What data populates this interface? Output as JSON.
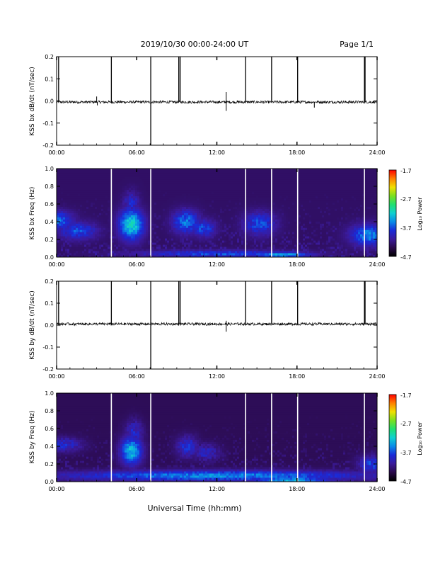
{
  "header": {
    "title": "2019/10/30  00:00-24:00 UT",
    "page": "Page 1/1"
  },
  "footer": {
    "xlabel": "Universal Time (hh:mm)"
  },
  "colorbar_common": {
    "label": "Log₁₀ Power",
    "ticks": [
      "-1.7",
      "-2.7",
      "-3.7",
      "-4.7"
    ],
    "range": [
      -4.7,
      -1.7
    ],
    "colormap": [
      "#000000",
      "#2a0a4a",
      "#3b1a9a",
      "#1a2ad8",
      "#0a8ae8",
      "#10d0d0",
      "#20e070",
      "#7ae020",
      "#f0e000",
      "#ff8000",
      "#ff0000"
    ]
  },
  "chart_data": [
    {
      "type": "line",
      "panel": "bx-dbdt",
      "ylabel": "KSS bx dB/dt (nT/sec)",
      "xlim_hours": [
        0,
        24
      ],
      "ylim": [
        -0.2,
        0.2
      ],
      "xticks": [
        "00:00",
        "06:00",
        "12:00",
        "18:00",
        "24:00"
      ],
      "yticks": [
        "0.2",
        "0.1",
        "0.0",
        "-0.1",
        "-0.2"
      ],
      "baseline": -0.005,
      "spikes": [
        {
          "t": 0.15,
          "v": 0.21
        },
        {
          "t": 4.1,
          "v": 0.21
        },
        {
          "t": 7.05,
          "v": 0.21
        },
        {
          "t": 7.05,
          "v": -0.21
        },
        {
          "t": 9.15,
          "v": 0.21
        },
        {
          "t": 9.25,
          "v": 0.21
        },
        {
          "t": 12.7,
          "v": 0.04
        },
        {
          "t": 12.7,
          "v": -0.045
        },
        {
          "t": 14.15,
          "v": 0.21
        },
        {
          "t": 16.1,
          "v": 0.21
        },
        {
          "t": 18.05,
          "v": 0.21
        },
        {
          "t": 23.05,
          "v": 0.21
        },
        {
          "t": 23.1,
          "v": 0.21
        },
        {
          "t": 3.0,
          "v": 0.02
        },
        {
          "t": 3.05,
          "v": -0.02
        },
        {
          "t": 19.3,
          "v": -0.03
        }
      ]
    },
    {
      "type": "heatmap",
      "panel": "bx-spectrogram",
      "ylabel": "KSS bx Freq (Hz)",
      "xlim_hours": [
        0,
        24
      ],
      "ylim": [
        0,
        1.0
      ],
      "xticks": [
        "00:00",
        "06:00",
        "12:00",
        "18:00",
        "24:00"
      ],
      "yticks": [
        "1.0",
        "0.8",
        "0.6",
        "0.4",
        "0.2",
        "0.0"
      ],
      "zlim": [
        -4.7,
        -1.7
      ],
      "background": -4.3,
      "gaps_hours": [
        4.1,
        7.05,
        14.15,
        16.1,
        18.05,
        23.05
      ],
      "blobs": [
        {
          "t": 0.0,
          "f": 0.42,
          "dt": 1.2,
          "df": 0.1,
          "z": -3.55
        },
        {
          "t": 1.6,
          "f": 0.3,
          "dt": 1.4,
          "df": 0.1,
          "z": -3.7
        },
        {
          "t": 5.6,
          "f": 0.37,
          "dt": 0.9,
          "df": 0.17,
          "z": -3.15
        },
        {
          "t": 5.6,
          "f": 0.6,
          "dt": 0.6,
          "df": 0.14,
          "z": -3.85
        },
        {
          "t": 9.7,
          "f": 0.4,
          "dt": 1.0,
          "df": 0.13,
          "z": -3.55
        },
        {
          "t": 11.0,
          "f": 0.33,
          "dt": 0.9,
          "df": 0.1,
          "z": -3.7
        },
        {
          "t": 15.2,
          "f": 0.38,
          "dt": 1.2,
          "df": 0.13,
          "z": -3.7
        },
        {
          "t": 23.4,
          "f": 0.25,
          "dt": 1.4,
          "df": 0.12,
          "z": -3.5
        },
        {
          "t": 16.8,
          "f": 0.03,
          "dt": 2.2,
          "df": 0.03,
          "z": -3.35
        },
        {
          "t": 12.0,
          "f": 0.04,
          "dt": 6.0,
          "df": 0.04,
          "z": -3.7
        }
      ]
    },
    {
      "type": "line",
      "panel": "by-dbdt",
      "ylabel": "KSS by dB/dt (nT/sec)",
      "xlim_hours": [
        0,
        24
      ],
      "ylim": [
        -0.2,
        0.2
      ],
      "xticks": [
        "00:00",
        "06:00",
        "12:00",
        "18:00",
        "24:00"
      ],
      "yticks": [
        "0.2",
        "0.1",
        "0.0",
        "-0.1",
        "-0.2"
      ],
      "baseline": 0.005,
      "spikes": [
        {
          "t": 0.15,
          "v": 0.21
        },
        {
          "t": 4.1,
          "v": 0.21
        },
        {
          "t": 7.05,
          "v": 0.21
        },
        {
          "t": 7.05,
          "v": -0.21
        },
        {
          "t": 9.15,
          "v": 0.21
        },
        {
          "t": 9.25,
          "v": 0.21
        },
        {
          "t": 12.7,
          "v": 0.02
        },
        {
          "t": 12.7,
          "v": -0.03
        },
        {
          "t": 14.15,
          "v": 0.21
        },
        {
          "t": 16.1,
          "v": 0.21
        },
        {
          "t": 18.05,
          "v": 0.21
        },
        {
          "t": 23.05,
          "v": 0.21
        },
        {
          "t": 23.1,
          "v": 0.21
        }
      ]
    },
    {
      "type": "heatmap",
      "panel": "by-spectrogram",
      "ylabel": "KSS by Freq (Hz)",
      "xlim_hours": [
        0,
        24
      ],
      "ylim": [
        0,
        1.0
      ],
      "xticks": [
        "00:00",
        "06:00",
        "12:00",
        "18:00",
        "24:00"
      ],
      "yticks": [
        "1.0",
        "0.8",
        "0.6",
        "0.4",
        "0.2",
        "0.0"
      ],
      "zlim": [
        -4.7,
        -1.7
      ],
      "background": -4.35,
      "gaps_hours": [
        4.1,
        7.05,
        14.15,
        16.1,
        18.05,
        23.05
      ],
      "blobs": [
        {
          "t": 0.5,
          "f": 0.42,
          "dt": 1.4,
          "df": 0.08,
          "z": -3.85
        },
        {
          "t": 5.6,
          "f": 0.35,
          "dt": 0.8,
          "df": 0.16,
          "z": -3.3
        },
        {
          "t": 5.8,
          "f": 0.55,
          "dt": 0.7,
          "df": 0.15,
          "z": -3.9
        },
        {
          "t": 9.8,
          "f": 0.4,
          "dt": 0.8,
          "df": 0.12,
          "z": -3.8
        },
        {
          "t": 11.2,
          "f": 0.33,
          "dt": 1.0,
          "df": 0.1,
          "z": -3.95
        },
        {
          "t": 23.6,
          "f": 0.2,
          "dt": 1.0,
          "df": 0.1,
          "z": -3.75
        },
        {
          "t": 12.0,
          "f": 0.07,
          "dt": 12.0,
          "df": 0.06,
          "z": -3.5
        },
        {
          "t": 17.5,
          "f": 0.02,
          "dt": 3.0,
          "df": 0.03,
          "z": -3.3
        }
      ]
    }
  ]
}
